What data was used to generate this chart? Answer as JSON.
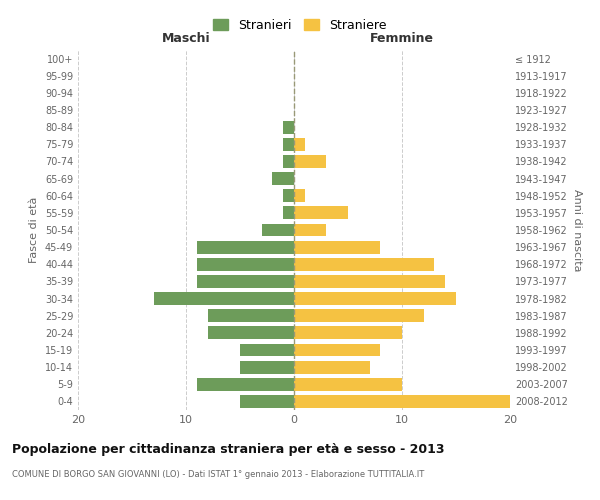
{
  "age_groups": [
    "0-4",
    "5-9",
    "10-14",
    "15-19",
    "20-24",
    "25-29",
    "30-34",
    "35-39",
    "40-44",
    "45-49",
    "50-54",
    "55-59",
    "60-64",
    "65-69",
    "70-74",
    "75-79",
    "80-84",
    "85-89",
    "90-94",
    "95-99",
    "100+"
  ],
  "birth_years": [
    "2008-2012",
    "2003-2007",
    "1998-2002",
    "1993-1997",
    "1988-1992",
    "1983-1987",
    "1978-1982",
    "1973-1977",
    "1968-1972",
    "1963-1967",
    "1958-1962",
    "1953-1957",
    "1948-1952",
    "1943-1947",
    "1938-1942",
    "1933-1937",
    "1928-1932",
    "1923-1927",
    "1918-1922",
    "1913-1917",
    "≤ 1912"
  ],
  "maschi": [
    5,
    9,
    5,
    5,
    8,
    8,
    13,
    9,
    9,
    9,
    3,
    1,
    1,
    2,
    1,
    1,
    1,
    0,
    0,
    0,
    0
  ],
  "femmine": [
    20,
    10,
    7,
    8,
    10,
    12,
    15,
    14,
    13,
    8,
    3,
    5,
    1,
    0,
    3,
    1,
    0,
    0,
    0,
    0,
    0
  ],
  "male_color": "#6d9c5a",
  "female_color": "#f5c242",
  "background_color": "#ffffff",
  "grid_color": "#cccccc",
  "title": "Popolazione per cittadinanza straniera per età e sesso - 2013",
  "subtitle": "COMUNE DI BORGO SAN GIOVANNI (LO) - Dati ISTAT 1° gennaio 2013 - Elaborazione TUTTITALIA.IT",
  "xlabel_left": "Maschi",
  "xlabel_right": "Femmine",
  "ylabel_left": "Fasce di età",
  "ylabel_right": "Anni di nascita",
  "legend_male": "Stranieri",
  "legend_female": "Straniere",
  "xlim": 20,
  "bar_height": 0.75
}
